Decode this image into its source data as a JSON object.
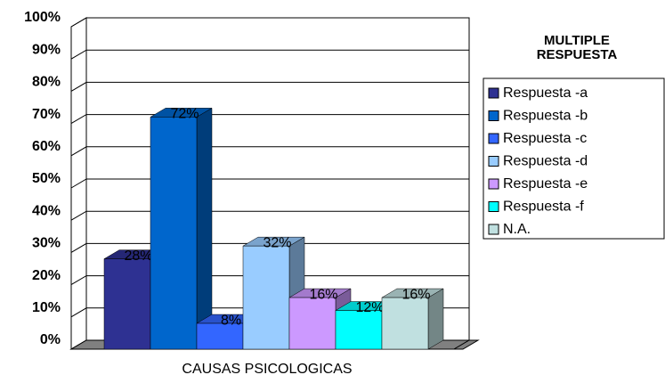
{
  "chart_data": {
    "type": "bar3d",
    "categories": [
      "CAUSAS PSICOLOGICAS"
    ],
    "legend_title": "MULTIPLE RESPUESTA",
    "series": [
      {
        "name": "Respuesta -a",
        "color": "#2e3192",
        "values": [
          28
        ],
        "value_labels": [
          "28%"
        ]
      },
      {
        "name": "Respuesta -b",
        "color": "#0066cc",
        "values": [
          72
        ],
        "value_labels": [
          "72%"
        ]
      },
      {
        "name": "Respuesta -c",
        "color": "#3366ff",
        "values": [
          8
        ],
        "value_labels": [
          "8%"
        ]
      },
      {
        "name": "Respuesta -d",
        "color": "#99ccff",
        "values": [
          32
        ],
        "value_labels": [
          "32%"
        ]
      },
      {
        "name": "Respuesta -e",
        "color": "#cc99ff",
        "values": [
          16
        ],
        "value_labels": [
          "16%"
        ]
      },
      {
        "name": "Respuesta -f",
        "color": "#00ffff",
        "values": [
          12
        ],
        "value_labels": [
          "12%"
        ]
      },
      {
        "name": "N.A.",
        "color": "#c0e0e0",
        "values": [
          16
        ],
        "value_labels": [
          "16%"
        ]
      }
    ],
    "ylim": [
      0,
      100
    ],
    "yticks": [
      {
        "value": 0,
        "label": "0%"
      },
      {
        "value": 10,
        "label": "10%"
      },
      {
        "value": 20,
        "label": "20%"
      },
      {
        "value": 30,
        "label": "30%"
      },
      {
        "value": 40,
        "label": "40%"
      },
      {
        "value": 50,
        "label": "50%"
      },
      {
        "value": 60,
        "label": "60%"
      },
      {
        "value": 70,
        "label": "70%"
      },
      {
        "value": 80,
        "label": "80%"
      },
      {
        "value": 90,
        "label": "90%"
      },
      {
        "value": 100,
        "label": "100%"
      }
    ],
    "grid": true,
    "legend": "right"
  }
}
